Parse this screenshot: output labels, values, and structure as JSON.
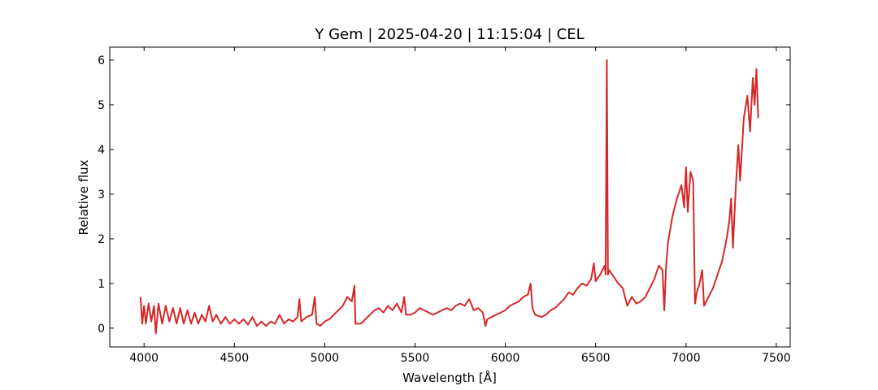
{
  "chart_data": {
    "type": "line",
    "title": "Y Gem | 2025-04-20 | 11:15:04 | CEL",
    "x_label": "Wavelength [Å]",
    "y_label": "Relative flux",
    "xlim": [
      3810,
      7577
    ],
    "ylim": [
      -0.42,
      6.29
    ],
    "xticks": [
      4000,
      4500,
      5000,
      5500,
      6000,
      6500,
      7000,
      7500
    ],
    "yticks": [
      0,
      1,
      2,
      3,
      4,
      5,
      6
    ],
    "series": [
      {
        "color": "#d62728",
        "x": [
          3980,
          3990,
          4000,
          4010,
          4025,
          4040,
          4055,
          4065,
          4080,
          4100,
          4120,
          4140,
          4160,
          4180,
          4200,
          4220,
          4240,
          4260,
          4280,
          4300,
          4320,
          4340,
          4360,
          4380,
          4400,
          4425,
          4450,
          4475,
          4500,
          4525,
          4550,
          4575,
          4600,
          4625,
          4650,
          4675,
          4700,
          4725,
          4750,
          4775,
          4800,
          4825,
          4850,
          4860,
          4870,
          4900,
          4930,
          4945,
          4955,
          4975,
          5000,
          5025,
          5050,
          5075,
          5100,
          5125,
          5150,
          5165,
          5170,
          5200,
          5225,
          5250,
          5275,
          5300,
          5325,
          5350,
          5375,
          5400,
          5425,
          5440,
          5450,
          5475,
          5500,
          5525,
          5550,
          5575,
          5600,
          5625,
          5650,
          5675,
          5700,
          5725,
          5750,
          5775,
          5800,
          5825,
          5850,
          5875,
          5890,
          5900,
          5925,
          5950,
          5975,
          6000,
          6025,
          6050,
          6075,
          6100,
          6125,
          6140,
          6150,
          6165,
          6200,
          6225,
          6250,
          6275,
          6300,
          6325,
          6350,
          6375,
          6400,
          6425,
          6450,
          6475,
          6490,
          6500,
          6525,
          6550,
          6555,
          6562,
          6568,
          6575,
          6600,
          6625,
          6650,
          6675,
          6700,
          6725,
          6750,
          6775,
          6800,
          6825,
          6850,
          6870,
          6880,
          6890,
          6900,
          6925,
          6950,
          6975,
          6990,
          7000,
          7010,
          7025,
          7040,
          7050,
          7060,
          7075,
          7090,
          7100,
          7125,
          7150,
          7175,
          7200,
          7225,
          7240,
          7250,
          7260,
          7275,
          7290,
          7300,
          7320,
          7340,
          7355,
          7370,
          7380,
          7390,
          7400
        ],
        "values": [
          0.7,
          0.1,
          0.5,
          0.1,
          0.55,
          0.15,
          0.5,
          -0.12,
          0.55,
          0.1,
          0.5,
          0.15,
          0.45,
          0.1,
          0.45,
          0.1,
          0.4,
          0.1,
          0.35,
          0.1,
          0.3,
          0.15,
          0.5,
          0.15,
          0.3,
          0.1,
          0.25,
          0.1,
          0.2,
          0.1,
          0.2,
          0.08,
          0.25,
          0.05,
          0.15,
          0.05,
          0.15,
          0.1,
          0.3,
          0.1,
          0.2,
          0.15,
          0.25,
          0.65,
          0.15,
          0.25,
          0.3,
          0.7,
          0.1,
          0.05,
          0.15,
          0.2,
          0.3,
          0.4,
          0.5,
          0.7,
          0.6,
          0.95,
          0.1,
          0.1,
          0.2,
          0.3,
          0.4,
          0.45,
          0.35,
          0.5,
          0.4,
          0.55,
          0.35,
          0.7,
          0.3,
          0.3,
          0.35,
          0.45,
          0.4,
          0.35,
          0.3,
          0.35,
          0.4,
          0.45,
          0.4,
          0.5,
          0.55,
          0.5,
          0.65,
          0.4,
          0.45,
          0.35,
          0.05,
          0.2,
          0.25,
          0.3,
          0.35,
          0.4,
          0.5,
          0.55,
          0.6,
          0.7,
          0.75,
          1.0,
          0.45,
          0.3,
          0.25,
          0.3,
          0.4,
          0.45,
          0.55,
          0.65,
          0.8,
          0.75,
          0.9,
          1.0,
          0.95,
          1.1,
          1.45,
          1.05,
          1.2,
          1.4,
          1.2,
          6.0,
          1.2,
          1.3,
          1.15,
          1.0,
          0.9,
          0.5,
          0.7,
          0.55,
          0.6,
          0.7,
          0.9,
          1.1,
          1.4,
          1.3,
          0.4,
          1.4,
          1.9,
          2.5,
          2.9,
          3.2,
          2.7,
          3.6,
          2.6,
          3.5,
          3.3,
          0.55,
          0.8,
          1.0,
          1.3,
          0.5,
          0.7,
          0.9,
          1.2,
          1.5,
          2.0,
          2.4,
          2.9,
          1.8,
          3.1,
          4.1,
          3.3,
          4.7,
          5.2,
          4.4,
          5.6,
          5.0,
          5.8,
          4.7
        ]
      }
    ]
  }
}
